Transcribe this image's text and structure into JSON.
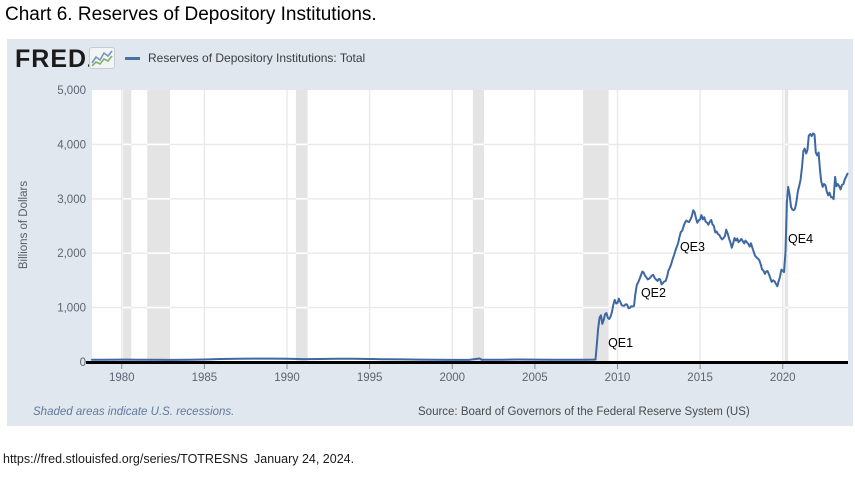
{
  "page": {
    "title": "Chart 6. Reserves of Depository Institutions.",
    "url": "https://fred.stlouisfed.org/series/TOTRESNS",
    "date_note": "January 24, 2024."
  },
  "header": {
    "logo_text": "FRED",
    "logo_icon": "fred-sparkline-icon",
    "legend_label": "Reserves of Depository Institutions: Total"
  },
  "footer": {
    "recession_note": "Shaded areas indicate U.S. recessions.",
    "source": "Source: Board of Governors of the Federal Reserve System (US)"
  },
  "colors": {
    "panel_bg": "#e0e7ef",
    "plot_bg": "#ffffff",
    "line": "#3e68a2",
    "legend_dash": "#4572a7",
    "recession_band": "#e4e4e4",
    "grid": "#e9e9e9",
    "axis": "#000000",
    "tick": "#8a8a8a",
    "tick_label": "#5b6570",
    "annotation": "#000000"
  },
  "chart_data": {
    "type": "line",
    "title": "Reserves of Depository Institutions: Total",
    "xlabel": "",
    "ylabel": "Billions of Dollars",
    "ylim": [
      0,
      5000
    ],
    "xlim": [
      1978.2,
      2023.95
    ],
    "grid": true,
    "legend_position": "top-left",
    "y_ticks": [
      {
        "v": 0,
        "label": "0"
      },
      {
        "v": 1000,
        "label": "1,000"
      },
      {
        "v": 2000,
        "label": "2,000"
      },
      {
        "v": 3000,
        "label": "3,000"
      },
      {
        "v": 4000,
        "label": "4,000"
      },
      {
        "v": 5000,
        "label": "5,000"
      }
    ],
    "x_ticks": [
      {
        "v": 1980,
        "label": "1980"
      },
      {
        "v": 1985,
        "label": "1985"
      },
      {
        "v": 1990,
        "label": "1990"
      },
      {
        "v": 1995,
        "label": "1995"
      },
      {
        "v": 2000,
        "label": "2000"
      },
      {
        "v": 2005,
        "label": "2005"
      },
      {
        "v": 2010,
        "label": "2010"
      },
      {
        "v": 2015,
        "label": "2015"
      },
      {
        "v": 2020,
        "label": "2020"
      }
    ],
    "recessions": [
      [
        1980.08,
        1980.58
      ],
      [
        1981.54,
        1982.92
      ],
      [
        1990.54,
        1991.25
      ],
      [
        2001.25,
        2001.92
      ],
      [
        2007.92,
        2009.46
      ],
      [
        2020.12,
        2020.33
      ]
    ],
    "annotations": [
      {
        "label": "QE1",
        "year": 2009.43,
        "value": 460
      },
      {
        "label": "QE2",
        "year": 2011.42,
        "value": 1380
      },
      {
        "label": "QE3",
        "year": 2013.78,
        "value": 2225
      },
      {
        "label": "QE4",
        "year": 2020.32,
        "value": 2370
      }
    ],
    "series": [
      {
        "name": "Reserves of Depository Institutions: Total",
        "points": [
          [
            1978.2,
            41
          ],
          [
            1979,
            43
          ],
          [
            1980,
            44
          ],
          [
            1981,
            42
          ],
          [
            1982,
            41
          ],
          [
            1983,
            38
          ],
          [
            1984,
            40
          ],
          [
            1985,
            46
          ],
          [
            1986,
            55
          ],
          [
            1987,
            58
          ],
          [
            1988,
            62
          ],
          [
            1989,
            62
          ],
          [
            1990,
            59
          ],
          [
            1991,
            54
          ],
          [
            1992,
            56
          ],
          [
            1993,
            60
          ],
          [
            1994,
            60
          ],
          [
            1995,
            56
          ],
          [
            1996,
            50
          ],
          [
            1997,
            47
          ],
          [
            1998,
            45
          ],
          [
            1999,
            42
          ],
          [
            2000,
            39
          ],
          [
            2001,
            38
          ],
          [
            2001.67,
            65
          ],
          [
            2001.78,
            40
          ],
          [
            2002,
            40
          ],
          [
            2003,
            43
          ],
          [
            2004,
            46
          ],
          [
            2005,
            45
          ],
          [
            2006,
            43
          ],
          [
            2007,
            42
          ],
          [
            2008.0,
            43
          ],
          [
            2008.5,
            44
          ],
          [
            2008.67,
            46
          ],
          [
            2008.75,
            315
          ],
          [
            2008.83,
            609
          ],
          [
            2008.92,
            820
          ],
          [
            2009.0,
            858
          ],
          [
            2009.08,
            701
          ],
          [
            2009.17,
            779
          ],
          [
            2009.25,
            881
          ],
          [
            2009.33,
            900
          ],
          [
            2009.42,
            810
          ],
          [
            2009.5,
            790
          ],
          [
            2009.58,
            829
          ],
          [
            2009.67,
            922
          ],
          [
            2009.75,
            1056
          ],
          [
            2009.83,
            1141
          ],
          [
            2009.92,
            1075
          ],
          [
            2010.0,
            1083
          ],
          [
            2010.08,
            1163
          ],
          [
            2010.17,
            1105
          ],
          [
            2010.25,
            1046
          ],
          [
            2010.33,
            1035
          ],
          [
            2010.42,
            1033
          ],
          [
            2010.5,
            1062
          ],
          [
            2010.58,
            1056
          ],
          [
            2010.67,
            989
          ],
          [
            2010.75,
            994
          ],
          [
            2010.83,
            1026
          ],
          [
            2010.92,
            1021
          ],
          [
            2011.0,
            1031
          ],
          [
            2011.08,
            1245
          ],
          [
            2011.17,
            1417
          ],
          [
            2011.25,
            1462
          ],
          [
            2011.33,
            1522
          ],
          [
            2011.42,
            1592
          ],
          [
            2011.5,
            1661
          ],
          [
            2011.58,
            1645
          ],
          [
            2011.67,
            1582
          ],
          [
            2011.75,
            1556
          ],
          [
            2011.83,
            1521
          ],
          [
            2011.92,
            1531
          ],
          [
            2012.0,
            1558
          ],
          [
            2012.08,
            1590
          ],
          [
            2012.17,
            1601
          ],
          [
            2012.25,
            1545
          ],
          [
            2012.33,
            1517
          ],
          [
            2012.42,
            1491
          ],
          [
            2012.5,
            1525
          ],
          [
            2012.58,
            1520
          ],
          [
            2012.67,
            1429
          ],
          [
            2012.75,
            1448
          ],
          [
            2012.83,
            1479
          ],
          [
            2012.92,
            1490
          ],
          [
            2013.0,
            1570
          ],
          [
            2013.08,
            1679
          ],
          [
            2013.17,
            1735
          ],
          [
            2013.25,
            1799
          ],
          [
            2013.33,
            1883
          ],
          [
            2013.42,
            1962
          ],
          [
            2013.5,
            2041
          ],
          [
            2013.58,
            2109
          ],
          [
            2013.67,
            2184
          ],
          [
            2013.75,
            2290
          ],
          [
            2013.83,
            2389
          ],
          [
            2013.92,
            2416
          ],
          [
            2014.0,
            2498
          ],
          [
            2014.08,
            2559
          ],
          [
            2014.17,
            2599
          ],
          [
            2014.25,
            2583
          ],
          [
            2014.33,
            2571
          ],
          [
            2014.42,
            2624
          ],
          [
            2014.5,
            2679
          ],
          [
            2014.58,
            2788
          ],
          [
            2014.67,
            2746
          ],
          [
            2014.75,
            2642
          ],
          [
            2014.83,
            2561
          ],
          [
            2014.92,
            2604
          ],
          [
            2015.0,
            2622
          ],
          [
            2015.08,
            2700
          ],
          [
            2015.17,
            2621
          ],
          [
            2015.25,
            2662
          ],
          [
            2015.33,
            2583
          ],
          [
            2015.42,
            2562
          ],
          [
            2015.5,
            2524
          ],
          [
            2015.58,
            2573
          ],
          [
            2015.67,
            2612
          ],
          [
            2015.75,
            2532
          ],
          [
            2015.83,
            2503
          ],
          [
            2015.92,
            2382
          ],
          [
            2016.0,
            2399
          ],
          [
            2016.08,
            2352
          ],
          [
            2016.17,
            2332
          ],
          [
            2016.25,
            2284
          ],
          [
            2016.33,
            2253
          ],
          [
            2016.42,
            2282
          ],
          [
            2016.5,
            2312
          ],
          [
            2016.58,
            2432
          ],
          [
            2016.67,
            2362
          ],
          [
            2016.75,
            2272
          ],
          [
            2016.83,
            2203
          ],
          [
            2016.92,
            2102
          ],
          [
            2017.0,
            2184
          ],
          [
            2017.08,
            2279
          ],
          [
            2017.17,
            2232
          ],
          [
            2017.25,
            2270
          ],
          [
            2017.33,
            2204
          ],
          [
            2017.42,
            2234
          ],
          [
            2017.5,
            2262
          ],
          [
            2017.58,
            2223
          ],
          [
            2017.67,
            2181
          ],
          [
            2017.75,
            2232
          ],
          [
            2017.83,
            2201
          ],
          [
            2017.92,
            2170
          ],
          [
            2018.0,
            2121
          ],
          [
            2018.08,
            2182
          ],
          [
            2018.17,
            2092
          ],
          [
            2018.25,
            2021
          ],
          [
            2018.33,
            1952
          ],
          [
            2018.42,
            1923
          ],
          [
            2018.5,
            1901
          ],
          [
            2018.58,
            1872
          ],
          [
            2018.67,
            1791
          ],
          [
            2018.75,
            1701
          ],
          [
            2018.83,
            1682
          ],
          [
            2018.92,
            1621
          ],
          [
            2019.0,
            1663
          ],
          [
            2019.08,
            1672
          ],
          [
            2019.17,
            1612
          ],
          [
            2019.25,
            1543
          ],
          [
            2019.33,
            1472
          ],
          [
            2019.42,
            1501
          ],
          [
            2019.5,
            1483
          ],
          [
            2019.58,
            1441
          ],
          [
            2019.67,
            1392
          ],
          [
            2019.75,
            1482
          ],
          [
            2019.83,
            1562
          ],
          [
            2019.92,
            1698
          ],
          [
            2020.0,
            1679
          ],
          [
            2020.08,
            1652
          ],
          [
            2020.17,
            2021
          ],
          [
            2020.25,
            2942
          ],
          [
            2020.33,
            3218
          ],
          [
            2020.42,
            3062
          ],
          [
            2020.5,
            2852
          ],
          [
            2020.58,
            2802
          ],
          [
            2020.67,
            2791
          ],
          [
            2020.75,
            2823
          ],
          [
            2020.83,
            2942
          ],
          [
            2020.92,
            3141
          ],
          [
            2021.0,
            3242
          ],
          [
            2021.08,
            3353
          ],
          [
            2021.17,
            3602
          ],
          [
            2021.25,
            3881
          ],
          [
            2021.33,
            3923
          ],
          [
            2021.42,
            3832
          ],
          [
            2021.5,
            3902
          ],
          [
            2021.58,
            4161
          ],
          [
            2021.67,
            4191
          ],
          [
            2021.75,
            4152
          ],
          [
            2021.83,
            4201
          ],
          [
            2021.92,
            4182
          ],
          [
            2022.0,
            3852
          ],
          [
            2022.08,
            3798
          ],
          [
            2022.17,
            3851
          ],
          [
            2022.25,
            3552
          ],
          [
            2022.33,
            3322
          ],
          [
            2022.42,
            3218
          ],
          [
            2022.5,
            3272
          ],
          [
            2022.58,
            3252
          ],
          [
            2022.67,
            3132
          ],
          [
            2022.75,
            3062
          ],
          [
            2022.83,
            3112
          ],
          [
            2022.92,
            3032
          ],
          [
            2023.0,
            3028
          ],
          [
            2023.08,
            2992
          ],
          [
            2023.17,
            3402
          ],
          [
            2023.25,
            3232
          ],
          [
            2023.33,
            3272
          ],
          [
            2023.42,
            3232
          ],
          [
            2023.5,
            3172
          ],
          [
            2023.58,
            3252
          ],
          [
            2023.67,
            3271
          ],
          [
            2023.75,
            3351
          ],
          [
            2023.83,
            3402
          ],
          [
            2023.92,
            3461
          ]
        ]
      }
    ]
  }
}
